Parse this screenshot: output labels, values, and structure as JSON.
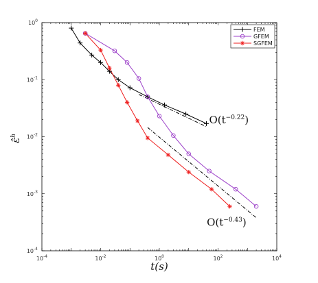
{
  "chart_data": {
    "type": "line",
    "x_scale": "log",
    "y_scale": "log",
    "xlim": [
      0.0001,
      10000
    ],
    "ylim": [
      0.0001,
      1
    ],
    "x_ticks": [
      0.0001,
      0.01,
      1,
      100,
      10000
    ],
    "x_tick_labels": [
      [
        "10",
        "-4"
      ],
      [
        "10",
        "-2"
      ],
      [
        "10",
        "0"
      ],
      [
        "10",
        "2"
      ],
      [
        "10",
        "4"
      ]
    ],
    "y_ticks": [
      1,
      0.1,
      0.01,
      0.001,
      0.0001
    ],
    "y_tick_labels": [
      [
        "10",
        "0"
      ],
      [
        "10",
        "-1"
      ],
      [
        "10",
        "-2"
      ],
      [
        "10",
        "-3"
      ],
      [
        "10",
        "-4"
      ]
    ],
    "xlabel": "t(s)",
    "ylabel": "ε̂",
    "ylabel_sup": "h",
    "legend_position": "top-right",
    "series": [
      {
        "name": "FEM",
        "color": "#000000",
        "marker": "plus",
        "x": [
          0.001,
          0.002,
          0.005,
          0.01,
          0.02,
          0.04,
          0.1,
          0.4,
          1.5,
          8,
          40
        ],
        "y": [
          0.8,
          0.44,
          0.27,
          0.2,
          0.14,
          0.1,
          0.072,
          0.05,
          0.036,
          0.025,
          0.017
        ]
      },
      {
        "name": "GFEM",
        "color": "#9b3fc8",
        "marker": "circle",
        "x": [
          0.003,
          0.03,
          0.08,
          0.2,
          0.4,
          1,
          3,
          10,
          50,
          400,
          2000
        ],
        "y": [
          0.65,
          0.32,
          0.2,
          0.105,
          0.05,
          0.023,
          0.0105,
          0.005,
          0.0025,
          0.0012,
          0.0006
        ]
      },
      {
        "name": "SGFEM",
        "color": "#ee1c1c",
        "marker": "star",
        "x": [
          0.003,
          0.01,
          0.02,
          0.04,
          0.08,
          0.18,
          0.4,
          2,
          10,
          60,
          250
        ],
        "y": [
          0.65,
          0.33,
          0.16,
          0.08,
          0.04,
          0.019,
          0.0095,
          0.0048,
          0.0024,
          0.0012,
          0.0006
        ]
      }
    ],
    "reference_lines": [
      {
        "x": [
          0.2,
          40
        ],
        "y": [
          0.055,
          0.015
        ],
        "label_prefix": "O(t",
        "label_exp": "−0.22",
        "label_suffix": ")"
      },
      {
        "x": [
          0.4,
          2000
        ],
        "y": [
          0.0145,
          0.00038
        ],
        "label_prefix": "O(t",
        "label_exp": "−0.43",
        "label_suffix": ")"
      }
    ]
  }
}
